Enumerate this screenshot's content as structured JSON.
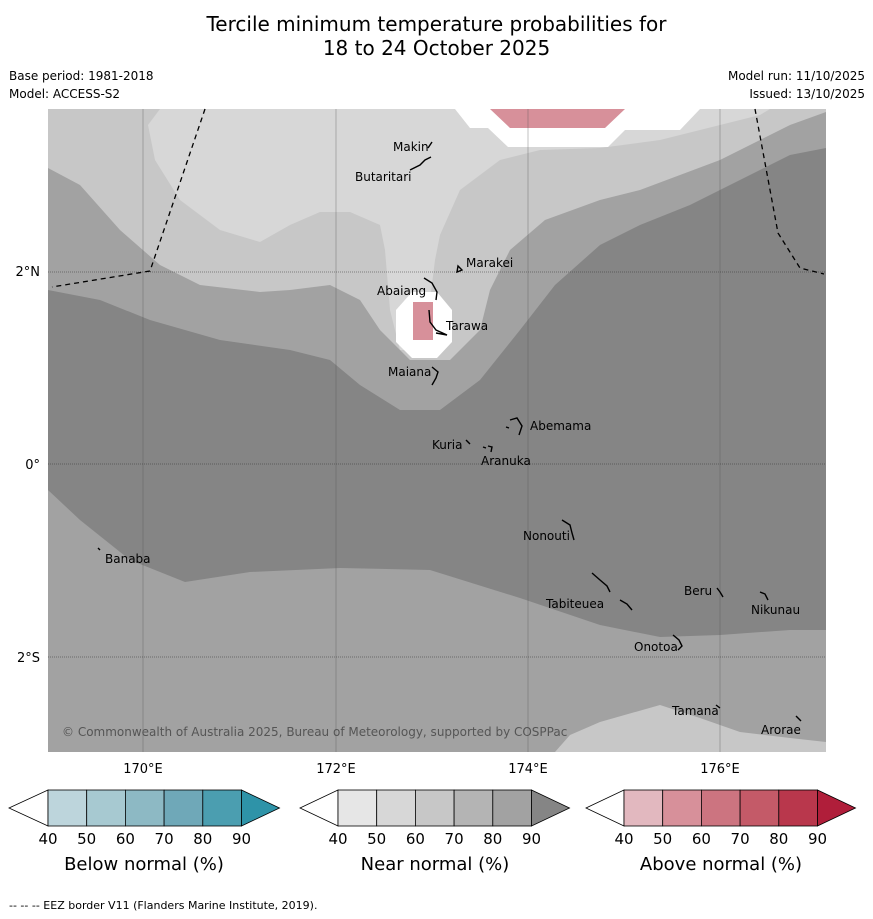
{
  "title_line1": "Tercile minimum temperature probabilities for",
  "title_line2": "18 to 24 October 2025",
  "base_period": "Base period: 1981-2018",
  "model": "Model: ACCESS-S2",
  "model_run": "Model run: 11/10/2025",
  "issued": "Issued: 13/10/2025",
  "copyright": "© Commonwealth of Australia 2025, Bureau of Meteorology, supported by COSPPac",
  "lat_labels": [
    "2°N",
    "0°",
    "2°S"
  ],
  "lon_labels": [
    "170°E",
    "172°E",
    "174°E",
    "176°E"
  ],
  "places": [
    {
      "name": "Makin"
    },
    {
      "name": "Butaritari"
    },
    {
      "name": "Marakei"
    },
    {
      "name": "Abaiang"
    },
    {
      "name": "Tarawa"
    },
    {
      "name": "Maiana"
    },
    {
      "name": "Abemama"
    },
    {
      "name": "Kuria"
    },
    {
      "name": "Aranuka"
    },
    {
      "name": "Nonouti"
    },
    {
      "name": "Banaba"
    },
    {
      "name": "Beru"
    },
    {
      "name": "Tabiteuea"
    },
    {
      "name": "Nikunau"
    },
    {
      "name": "Onotoa"
    },
    {
      "name": "Tamana"
    },
    {
      "name": "Arorae"
    }
  ],
  "colorbars": [
    {
      "label": "Below normal (%)",
      "ticks": [
        "40",
        "50",
        "60",
        "70",
        "80",
        "90"
      ],
      "colors": [
        "#ffffff",
        "#bdd5dc",
        "#a7c9d1",
        "#8db9c4",
        "#6fa8b8",
        "#4b9eb0",
        "#2e93a8"
      ]
    },
    {
      "label": "Near normal (%)",
      "ticks": [
        "40",
        "50",
        "60",
        "70",
        "80",
        "90"
      ],
      "colors": [
        "#ffffff",
        "#e6e6e6",
        "#d7d7d7",
        "#c7c7c7",
        "#b4b4b4",
        "#a2a2a2",
        "#858585"
      ]
    },
    {
      "label": "Above normal (%)",
      "ticks": [
        "40",
        "50",
        "60",
        "70",
        "80",
        "90"
      ],
      "colors": [
        "#ffffff",
        "#e2b8bf",
        "#d7909a",
        "#cc7480",
        "#c45a68",
        "#b9374c",
        "#b01e3a"
      ]
    }
  ],
  "footer": "--  --  -- EEZ border V11 (Flanders Marine Institute, 2019)."
}
